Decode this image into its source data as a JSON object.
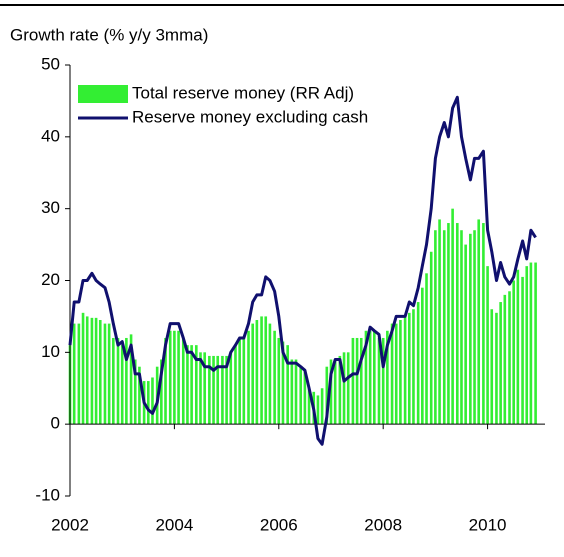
{
  "chart_data": {
    "type": "bar",
    "title": "Growth rate (% y/y 3mma)",
    "x": [
      2002,
      2002.08,
      2002.17,
      2002.25,
      2002.33,
      2002.42,
      2002.5,
      2002.58,
      2002.67,
      2002.75,
      2002.83,
      2002.92,
      2003,
      2003.08,
      2003.17,
      2003.25,
      2003.33,
      2003.42,
      2003.5,
      2003.58,
      2003.67,
      2003.75,
      2003.83,
      2003.92,
      2004,
      2004.08,
      2004.17,
      2004.25,
      2004.33,
      2004.42,
      2004.5,
      2004.58,
      2004.67,
      2004.75,
      2004.83,
      2004.92,
      2005,
      2005.08,
      2005.17,
      2005.25,
      2005.33,
      2005.42,
      2005.5,
      2005.58,
      2005.67,
      2005.75,
      2005.83,
      2005.92,
      2006,
      2006.08,
      2006.17,
      2006.25,
      2006.33,
      2006.42,
      2006.5,
      2006.58,
      2006.67,
      2006.75,
      2006.83,
      2006.92,
      2007,
      2007.08,
      2007.17,
      2007.25,
      2007.33,
      2007.42,
      2007.5,
      2007.58,
      2007.67,
      2007.75,
      2007.83,
      2007.92,
      2008,
      2008.08,
      2008.17,
      2008.25,
      2008.33,
      2008.42,
      2008.5,
      2008.58,
      2008.67,
      2008.75,
      2008.83,
      2008.92,
      2009,
      2009.08,
      2009.17,
      2009.25,
      2009.33,
      2009.42,
      2009.5,
      2009.58,
      2009.67,
      2009.75,
      2009.83,
      2009.92,
      2010,
      2010.08,
      2010.17,
      2010.25,
      2010.33,
      2010.42,
      2010.5,
      2010.58,
      2010.67,
      2010.75,
      2010.83,
      2010.92
    ],
    "series": [
      {
        "name": "Total reserve money (RR Adj)",
        "type": "bar",
        "color": "#33ee33",
        "values": [
          11,
          14,
          14,
          15.5,
          15,
          14.8,
          14.8,
          14.5,
          14,
          14,
          12,
          12,
          11,
          12,
          12.5,
          9,
          8,
          6,
          6,
          6.5,
          8,
          9,
          12,
          13,
          13,
          13,
          12,
          11,
          11,
          11,
          10,
          10,
          9.5,
          9.5,
          9.5,
          9.5,
          9.5,
          10,
          11,
          12,
          12,
          13,
          14,
          14.5,
          15,
          15,
          14,
          13,
          12,
          11.5,
          11,
          9,
          9,
          8,
          7.5,
          5,
          4.5,
          4,
          5,
          8,
          9,
          9,
          9.5,
          10,
          10,
          12,
          12,
          12,
          13,
          13,
          13,
          12,
          12,
          13,
          14,
          14,
          14.5,
          15,
          15.5,
          16,
          17,
          19,
          21,
          24,
          27,
          28.5,
          27,
          28,
          30,
          28,
          27,
          25,
          26.5,
          27,
          28.5,
          28,
          22,
          16,
          15.5,
          17,
          18,
          18.5,
          20,
          21.5,
          20.5,
          22,
          22.5,
          22.5
        ]
      },
      {
        "name": "Reserve money excluding cash",
        "type": "line",
        "color": "#10106e",
        "values": [
          11,
          17,
          17,
          20,
          20,
          21,
          20,
          19.5,
          19,
          17,
          14,
          11,
          11.5,
          9,
          11,
          7,
          7,
          3,
          2,
          1.5,
          3,
          7,
          11,
          14,
          14,
          14,
          12,
          10,
          10,
          9,
          9,
          8,
          8,
          7.5,
          8,
          8,
          8,
          10,
          11,
          12,
          12,
          14,
          17,
          18,
          18,
          20.5,
          20,
          18.5,
          15,
          10,
          8.5,
          8.5,
          8.5,
          8,
          7.5,
          5,
          2,
          -2,
          -2.8,
          1,
          7,
          9,
          9,
          6,
          6.5,
          7,
          7,
          9,
          11,
          13.5,
          13,
          12.5,
          8,
          11,
          13,
          15,
          15,
          15,
          17,
          16.5,
          19,
          22,
          25,
          30,
          37,
          40,
          42,
          40,
          44,
          45.5,
          40,
          37,
          34,
          37,
          37,
          38,
          27,
          24,
          20,
          22.5,
          20.5,
          19.5,
          20.5,
          23,
          25.5,
          23,
          27,
          26
        ]
      }
    ],
    "xlim": [
      2002,
      2011.1
    ],
    "xticks": [
      2002,
      2004,
      2006,
      2008,
      2010
    ],
    "ylim": [
      -10,
      50
    ],
    "yticks": [
      -10,
      0,
      10,
      20,
      30,
      40,
      50
    ],
    "legend": "top-left"
  }
}
